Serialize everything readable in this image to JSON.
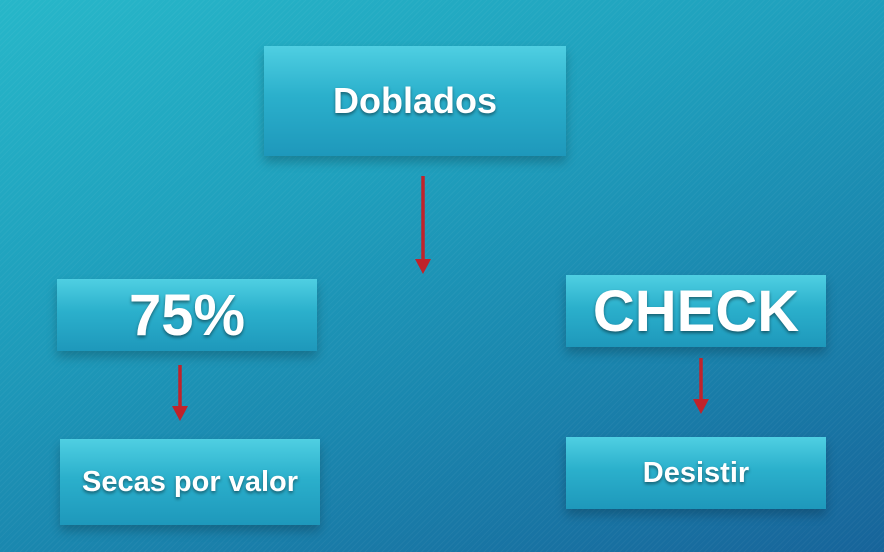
{
  "diagram": {
    "nodes": {
      "top": "Doblados",
      "left": "75%",
      "right": "CHECK",
      "left_child": "Secas por valor",
      "right_child": "Desistir"
    },
    "edges": [
      {
        "from": "top",
        "to": "left"
      },
      {
        "from": "left",
        "to": "left_child"
      },
      {
        "from": "right",
        "to": "right_child"
      }
    ],
    "colors": {
      "background": "#1f9fbd",
      "box": "#2bb0cc",
      "arrow": "#c0232b",
      "text": "#ffffff"
    }
  }
}
